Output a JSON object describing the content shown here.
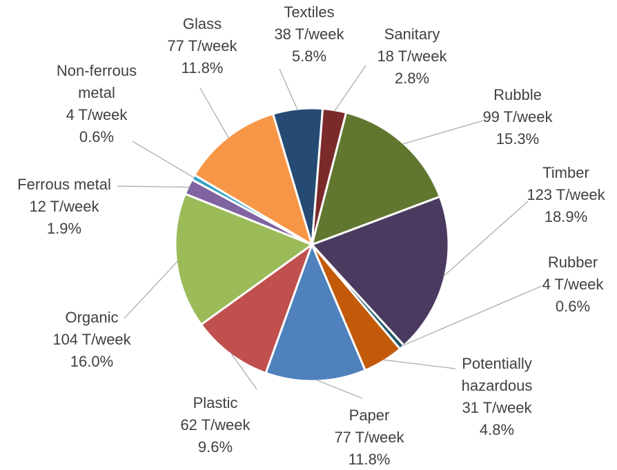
{
  "chart_data": {
    "type": "pie",
    "title": "",
    "start_angle_deg": 14.5,
    "direction": "clockwise",
    "slices": [
      {
        "label": "Rubble",
        "value_text": "99 T/week",
        "percent_text": "15.3%",
        "value": 99,
        "color": "#617730"
      },
      {
        "label": "Timber",
        "value_text": "123 T/week",
        "percent_text": "18.9%",
        "value": 123,
        "color": "#4b3a60"
      },
      {
        "label": "Rubber",
        "value_text": "4 T/week",
        "percent_text": "0.6%",
        "value": 4,
        "color": "#215968"
      },
      {
        "label": "Potentially hazardous",
        "value_text": "31 T/week",
        "percent_text": "4.8%",
        "value": 31,
        "color": "#c25a0a"
      },
      {
        "label": "Paper",
        "value_text": "77 T/week",
        "percent_text": "11.8%",
        "value": 77,
        "color": "#4f81bd"
      },
      {
        "label": "Plastic",
        "value_text": "62 T/week",
        "percent_text": "9.6%",
        "value": 62,
        "color": "#c0504d"
      },
      {
        "label": "Organic",
        "value_text": "104 T/week",
        "percent_text": "16.0%",
        "value": 104,
        "color": "#9bbb59"
      },
      {
        "label": "Ferrous metal",
        "value_text": "12 T/week",
        "percent_text": "1.9%",
        "value": 12,
        "color": "#8064a2"
      },
      {
        "label": "Non-ferrous metal",
        "value_text": "4 T/week",
        "percent_text": "0.6%",
        "value": 4,
        "color": "#31a3c4"
      },
      {
        "label": "Glass",
        "value_text": "77 T/week",
        "percent_text": "11.8%",
        "value": 77,
        "color": "#f79646"
      },
      {
        "label": "Textiles",
        "value_text": "38 T/week",
        "percent_text": "5.8%",
        "value": 38,
        "color": "#254b73"
      },
      {
        "label": "Sanitary",
        "value_text": "18 T/week",
        "percent_text": "2.8%",
        "value": 18,
        "color": "#7b2a2a"
      }
    ]
  }
}
